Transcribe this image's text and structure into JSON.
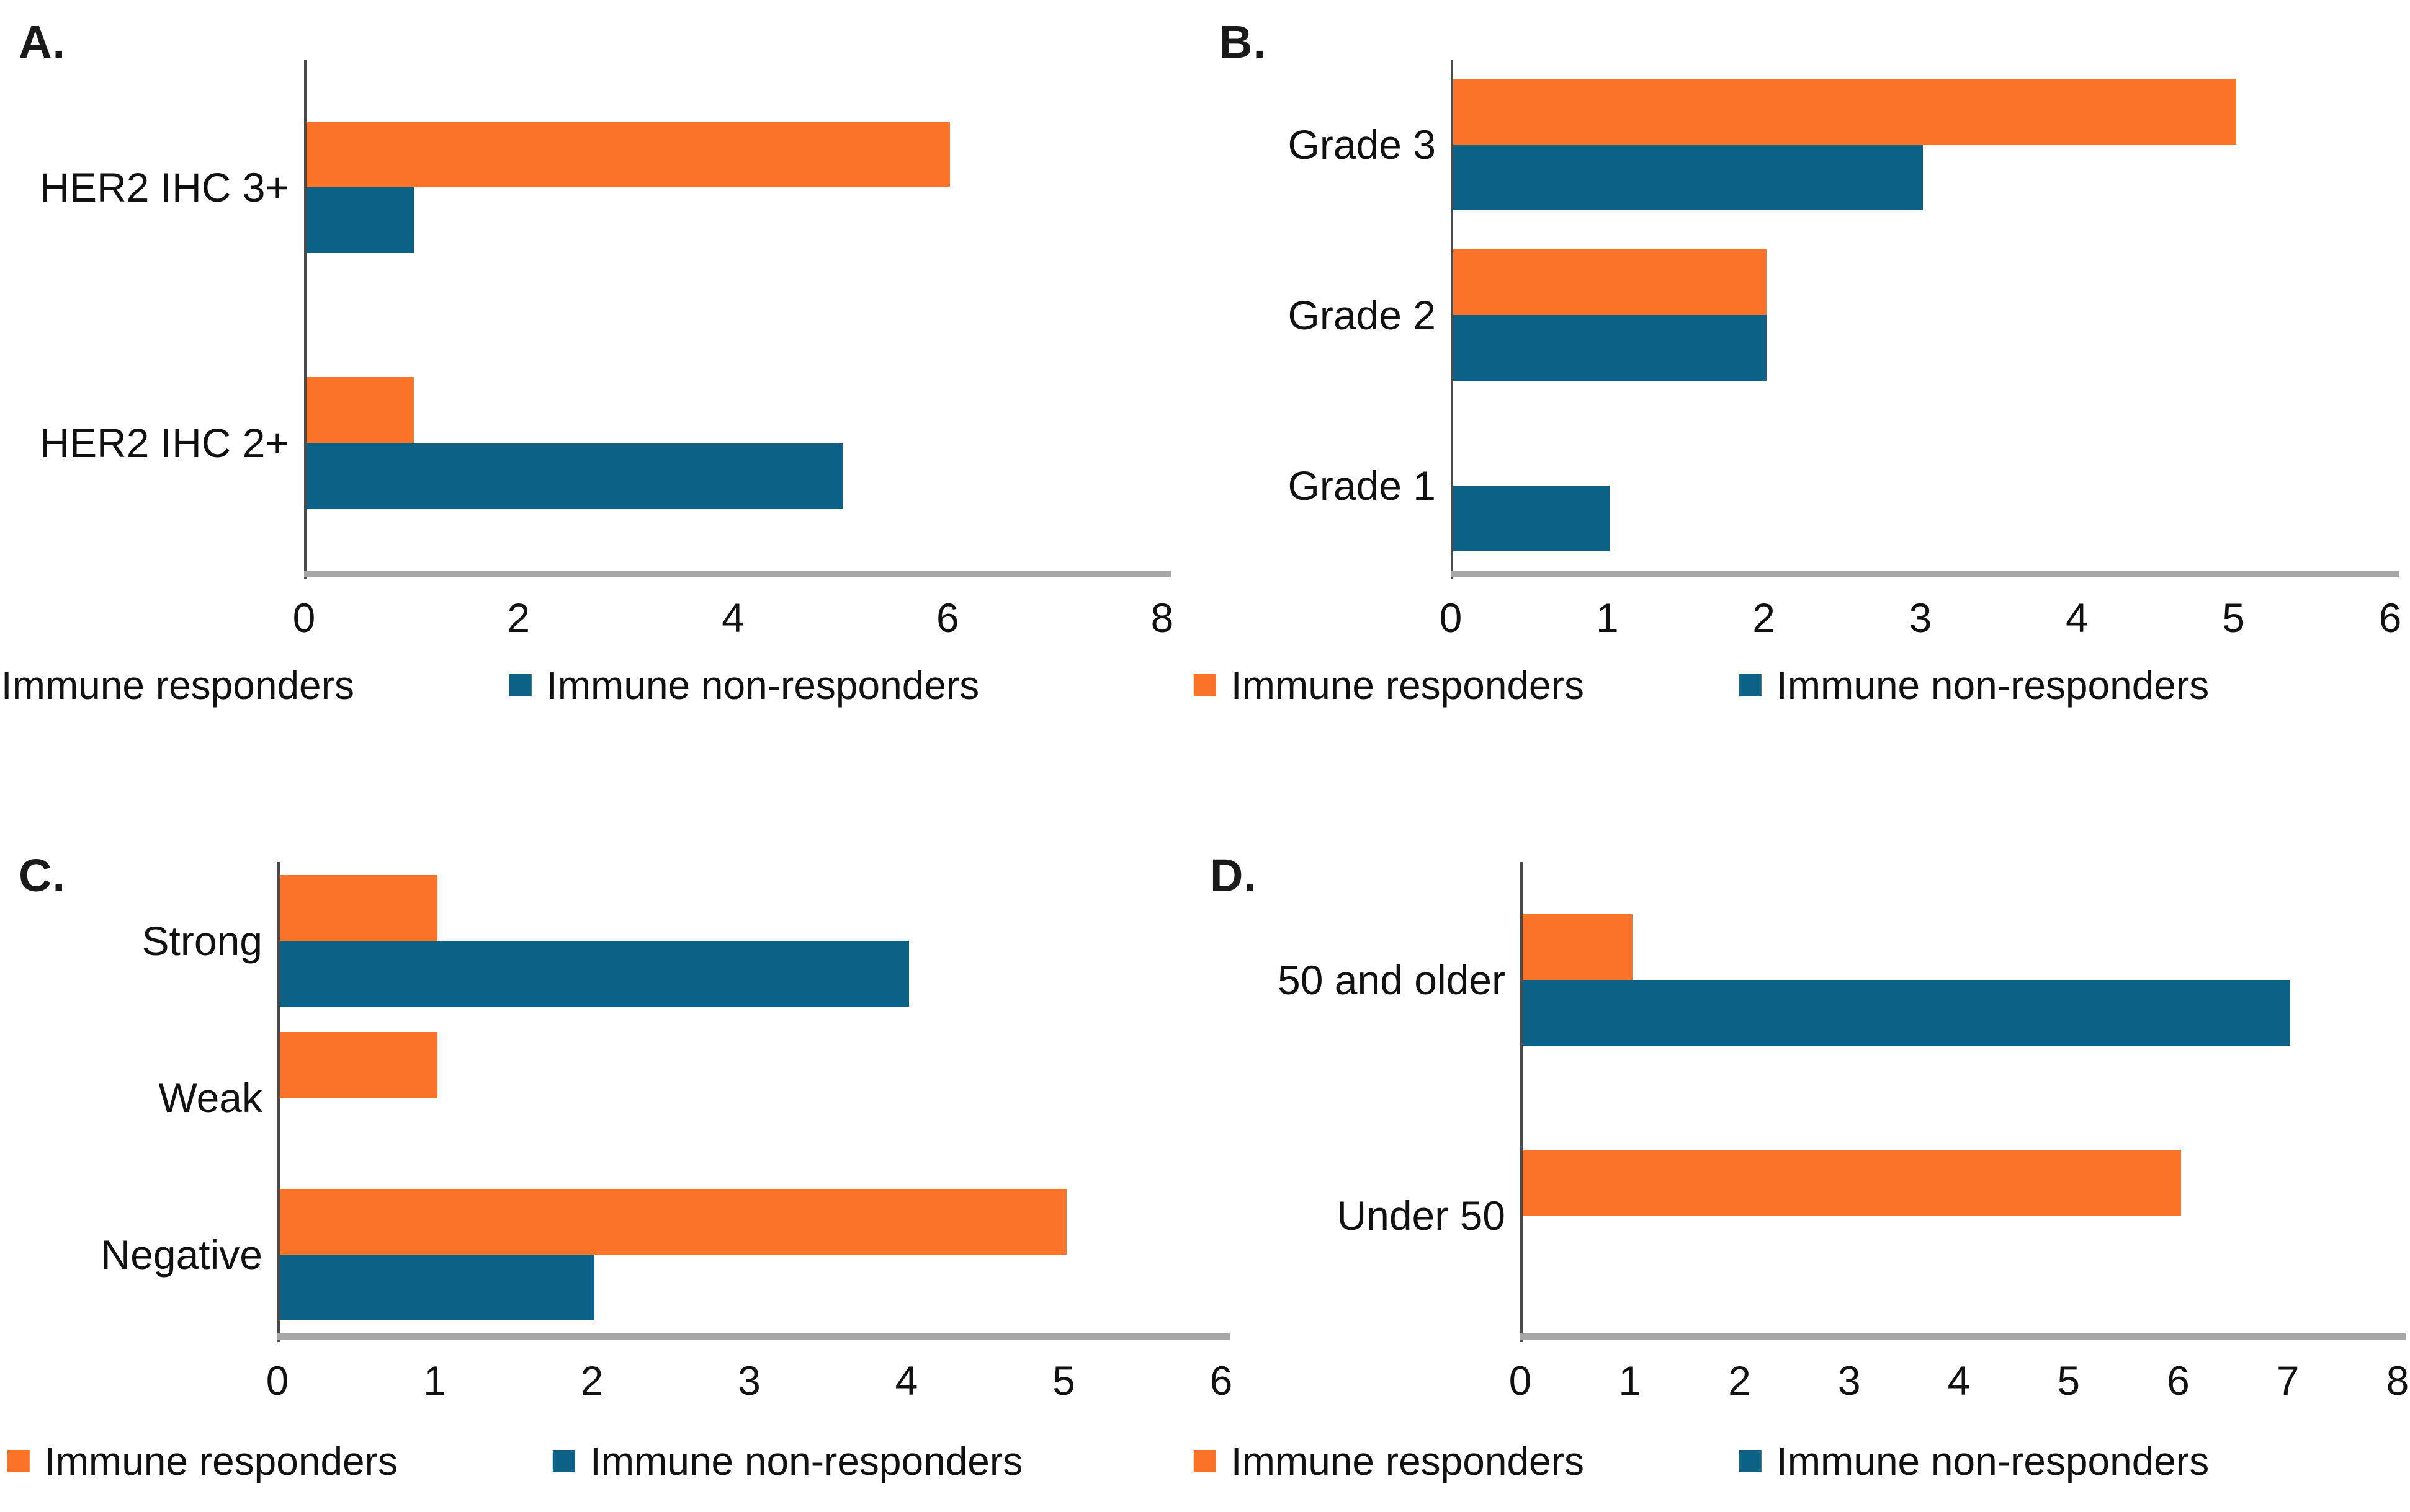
{
  "figure": {
    "description": "Four-panel horizontal grouped bar figure comparing immune responders and immune non-responders",
    "panel_letters": [
      "A.",
      "B.",
      "C.",
      "D."
    ]
  },
  "colors": {
    "responders": "#FA7329",
    "non_responders": "#0C6186",
    "y_axis": "#4A4A4A",
    "x_axis": "#A6A6A6",
    "text": "#111111",
    "background": "#FFFFFF"
  },
  "legend": {
    "items": [
      {
        "label": "Immune responders",
        "color_key": "responders"
      },
      {
        "label": "Immune non-responders",
        "color_key": "non_responders"
      }
    ]
  },
  "chart_data": [
    {
      "panel_label": "A.",
      "type": "bar",
      "orientation": "horizontal",
      "title": "",
      "xlabel": "",
      "ylabel": "",
      "categories": [
        "HER2 IHC 3+",
        "HER2 IHC 2+"
      ],
      "series": [
        {
          "name": "Immune responders",
          "values": [
            6,
            1
          ]
        },
        {
          "name": "Immune non-responders",
          "values": [
            1,
            5
          ]
        }
      ],
      "xlim": [
        0,
        8
      ],
      "xticks": [
        0,
        2,
        4,
        6,
        8
      ],
      "grid": false,
      "legend_position": "bottom"
    },
    {
      "panel_label": "B.",
      "type": "bar",
      "orientation": "horizontal",
      "title": "",
      "xlabel": "",
      "ylabel": "",
      "categories": [
        "Grade 3",
        "Grade 2",
        "Grade 1"
      ],
      "series": [
        {
          "name": "Immune responders",
          "values": [
            5,
            2,
            0
          ]
        },
        {
          "name": "Immune non-responders",
          "values": [
            3,
            2,
            1
          ]
        }
      ],
      "xlim": [
        0,
        6
      ],
      "xticks": [
        0,
        1,
        2,
        3,
        4,
        5,
        6
      ],
      "grid": false,
      "legend_position": "bottom"
    },
    {
      "panel_label": "C.",
      "type": "bar",
      "orientation": "horizontal",
      "title": "",
      "xlabel": "",
      "ylabel": "",
      "categories": [
        "Strong",
        "Weak",
        "Negative"
      ],
      "series": [
        {
          "name": "Immune responders",
          "values": [
            1,
            1,
            5
          ]
        },
        {
          "name": "Immune non-responders",
          "values": [
            4,
            0,
            2
          ]
        }
      ],
      "xlim": [
        0,
        6
      ],
      "xticks": [
        0,
        1,
        2,
        3,
        4,
        5,
        6
      ],
      "grid": false,
      "legend_position": "bottom"
    },
    {
      "panel_label": "D.",
      "type": "bar",
      "orientation": "horizontal",
      "title": "",
      "xlabel": "",
      "ylabel": "",
      "categories": [
        "50 and older",
        "Under 50"
      ],
      "series": [
        {
          "name": "Immune responders",
          "values": [
            1,
            6
          ]
        },
        {
          "name": "Immune non-responders",
          "values": [
            7,
            0
          ]
        }
      ],
      "xlim": [
        0,
        8
      ],
      "xticks": [
        0,
        1,
        2,
        3,
        4,
        5,
        6,
        7,
        8
      ],
      "grid": false,
      "legend_position": "bottom"
    }
  ]
}
